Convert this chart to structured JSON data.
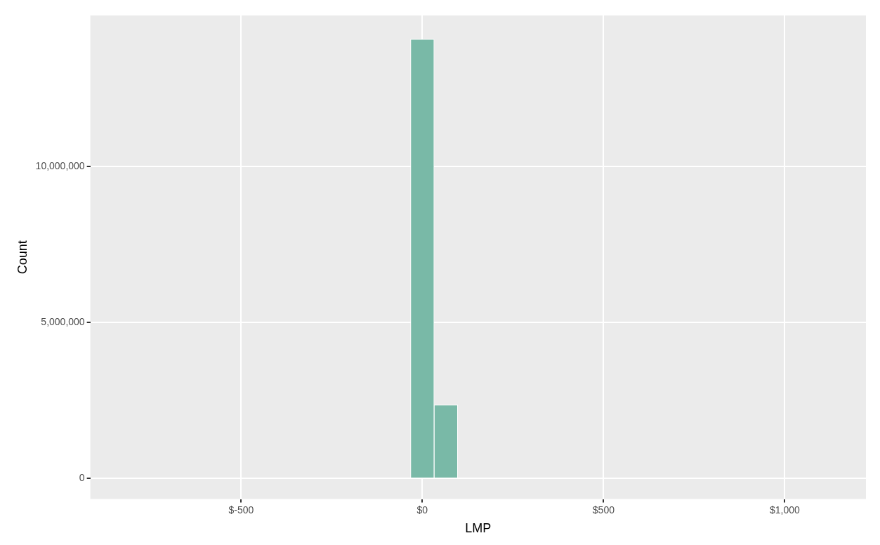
{
  "chart_data": {
    "type": "histogram",
    "xlabel": "LMP",
    "ylabel": "Count",
    "bins": [
      -812.5,
      -747.5,
      -682.5,
      -617.5,
      -552.5,
      -487.5,
      -422.5,
      -357.5,
      -292.5,
      -227.5,
      -162.5,
      -97.5,
      -32.5,
      32.5,
      97.5,
      162.5,
      227.5,
      292.5,
      357.5,
      422.5,
      487.5,
      552.5,
      617.5,
      682.5,
      747.5,
      812.5,
      877.5,
      942.5,
      1007.5,
      1072.5,
      1137.5
    ],
    "values": [
      0,
      0,
      0,
      0,
      0,
      0,
      0,
      0,
      0,
      0,
      0,
      0,
      14080000,
      2350000,
      0,
      0,
      0,
      0,
      0,
      0,
      0,
      0,
      0,
      0,
      0,
      0,
      0,
      0,
      0,
      0
    ],
    "color": "#79b9a7",
    "xlim": [
      -916,
      1224
    ],
    "xticks": [
      {
        "value": -500,
        "label": "$-500"
      },
      {
        "value": 0,
        "label": "$0"
      },
      {
        "value": 500,
        "label": "$500"
      },
      {
        "value": 1000,
        "label": "$1,000"
      }
    ],
    "ylim": [
      -667000,
      14840000
    ],
    "yticks": [
      {
        "value": 0,
        "label": "0"
      },
      {
        "value": 5000000,
        "label": "5,000,000"
      },
      {
        "value": 10000000,
        "label": "10,000,000"
      }
    ],
    "grid": true
  }
}
